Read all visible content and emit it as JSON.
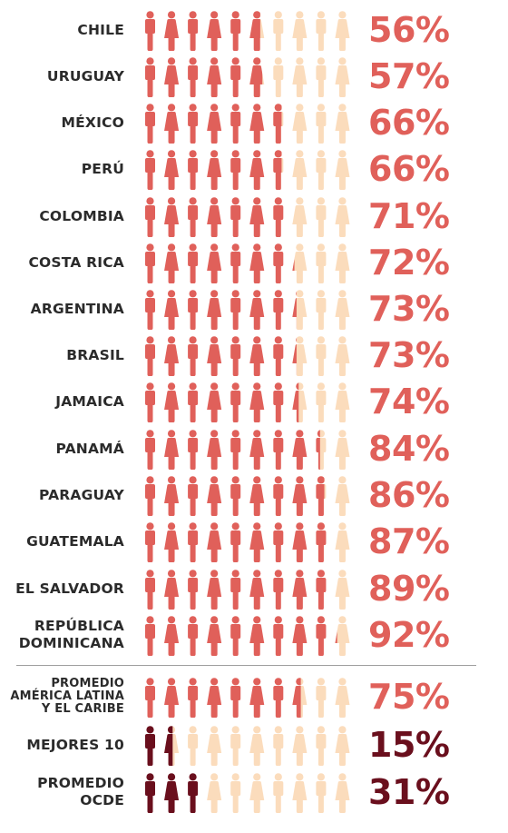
{
  "colors": {
    "filled": "#e0605a",
    "empty": "#fbdcbc",
    "dark": "#6a0f1d",
    "text": "#2b2b2b",
    "divider": "#9e9e9e"
  },
  "chart_data": {
    "type": "bar",
    "style": "pictogram (10 person icons per row, filled proportionally)",
    "categories": [
      "CHILE",
      "URUGUAY",
      "MÉXICO",
      "PERÚ",
      "COLOMBIA",
      "COSTA RICA",
      "ARGENTINA",
      "BRASIL",
      "JAMAICA",
      "PANAMÁ",
      "PARAGUAY",
      "GUATEMALA",
      "EL SALVADOR",
      "REPÚBLICA DOMINICANA",
      "PROMEDIO AMÉRICA LATINA Y EL CARIBE",
      "MEJORES 10",
      "PROMEDIO OCDE"
    ],
    "values": [
      56,
      57,
      66,
      66,
      71,
      72,
      73,
      73,
      74,
      84,
      86,
      87,
      89,
      92,
      75,
      15,
      31
    ],
    "ylim": [
      0,
      100
    ],
    "rows": [
      {
        "lines": [
          "CHILE"
        ],
        "value": 56,
        "label": "56%",
        "color": "filled"
      },
      {
        "lines": [
          "URUGUAY"
        ],
        "value": 57,
        "label": "57%",
        "color": "filled"
      },
      {
        "lines": [
          "MÉXICO"
        ],
        "value": 66,
        "label": "66%",
        "color": "filled"
      },
      {
        "lines": [
          "PERÚ"
        ],
        "value": 66,
        "label": "66%",
        "color": "filled"
      },
      {
        "lines": [
          "COLOMBIA"
        ],
        "value": 71,
        "label": "71%",
        "color": "filled"
      },
      {
        "lines": [
          "COSTA RICA"
        ],
        "value": 72,
        "label": "72%",
        "color": "filled"
      },
      {
        "lines": [
          "ARGENTINA"
        ],
        "value": 73,
        "label": "73%",
        "color": "filled"
      },
      {
        "lines": [
          "BRASIL"
        ],
        "value": 73,
        "label": "73%",
        "color": "filled"
      },
      {
        "lines": [
          "JAMAICA"
        ],
        "value": 74,
        "label": "74%",
        "color": "filled"
      },
      {
        "lines": [
          "PANAMÁ"
        ],
        "value": 84,
        "label": "84%",
        "color": "filled"
      },
      {
        "lines": [
          "PARAGUAY"
        ],
        "value": 86,
        "label": "86%",
        "color": "filled"
      },
      {
        "lines": [
          "GUATEMALA"
        ],
        "value": 87,
        "label": "87%",
        "color": "filled"
      },
      {
        "lines": [
          "EL SALVADOR"
        ],
        "value": 89,
        "label": "89%",
        "color": "filled"
      },
      {
        "lines": [
          "REPÚBLICA",
          "DOMINICANA"
        ],
        "value": 92,
        "label": "92%",
        "color": "filled"
      },
      {
        "lines": [
          "PROMEDIO",
          "AMÉRICA LATINA",
          "Y EL CARIBE"
        ],
        "value": 75,
        "label": "75%",
        "color": "filled"
      },
      {
        "lines": [
          "MEJORES 10"
        ],
        "value": 15,
        "label": "15%",
        "color": "dark"
      },
      {
        "lines": [
          "PROMEDIO",
          "OCDE"
        ],
        "value": 31,
        "label": "31%",
        "color": "dark"
      }
    ]
  }
}
